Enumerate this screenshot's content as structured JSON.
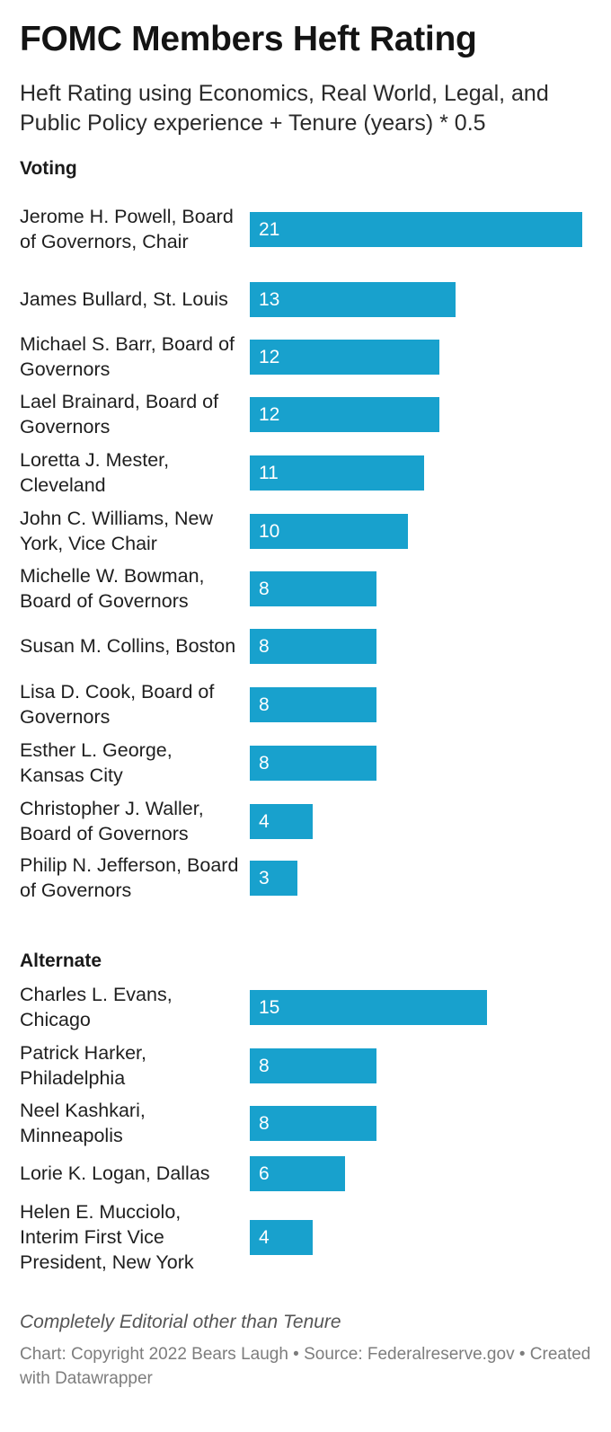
{
  "chart_data": {
    "type": "bar",
    "orientation": "horizontal",
    "title": "FOMC Members Heft Rating",
    "subtitle": "Heft Rating using Economics, Real World, Legal, and Public Policy experience + Tenure (years) * 0.5",
    "xlim": [
      0,
      21
    ],
    "groups": [
      {
        "name": "Voting",
        "categories": [
          "Jerome H. Powell, Board of Governors, Chair",
          "James Bullard, St. Louis",
          "Michael S. Barr, Board of Governors",
          "Lael Brainard, Board of Governors",
          "Loretta J. Mester, Cleveland",
          "John C. Williams, New York, Vice Chair",
          "Michelle W. Bowman, Board of Governors",
          "Susan M. Collins, Boston",
          "Lisa D. Cook, Board of Governors",
          "Esther L. George, Kansas City",
          "Christopher J. Waller, Board of Governors",
          "Philip N. Jefferson, Board of Governors"
        ],
        "values": [
          21,
          13,
          12,
          12,
          11,
          10,
          8,
          8,
          8,
          8,
          4,
          3
        ]
      },
      {
        "name": "Alternate",
        "categories": [
          "Charles L. Evans, Chicago",
          "Patrick Harker, Philadelphia",
          "Neel Kashkari, Minneapolis",
          "Lorie K. Logan, Dallas",
          "Helen E. Mucciolo, Interim First Vice President, New York"
        ],
        "values": [
          15,
          8,
          8,
          6,
          4
        ]
      }
    ],
    "bar_color": "#18a1cd",
    "notes": "Completely Editorial other than Tenure",
    "footer": "Chart: Copyright 2022 Bears Laugh • Source: Federalreserve.gov • Created with Datawrapper"
  }
}
